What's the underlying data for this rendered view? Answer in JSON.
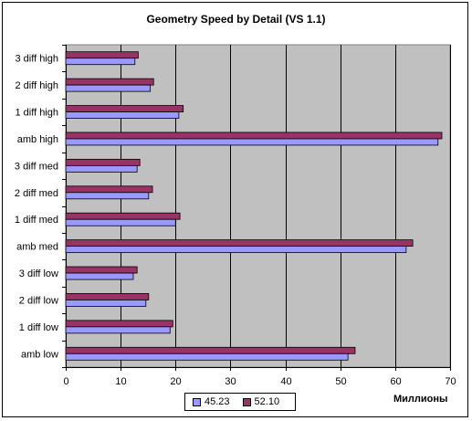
{
  "chart_data": {
    "type": "bar",
    "orientation": "horizontal",
    "title": "Geometry Speed by Detail (VS 1.1)",
    "xlabel": "Миллионы",
    "ylabel": "",
    "xlim": [
      0,
      70
    ],
    "xticks": [
      0,
      10,
      20,
      30,
      40,
      50,
      60,
      70
    ],
    "grid": true,
    "legend_position": "bottom",
    "categories": [
      "3 diff high",
      "2 diff high",
      "1 diff high",
      "amb high",
      "3 diff med",
      "2 diff med",
      "1 diff med",
      "amb med",
      "3 diff low",
      "2 diff low",
      "1 diff low",
      "amb low"
    ],
    "series": [
      {
        "name": "45.23",
        "color": "#9999ff",
        "values": [
          12.6,
          15.4,
          20.6,
          67.8,
          13.0,
          15.1,
          20.0,
          62.0,
          12.3,
          14.6,
          19.0,
          51.4
        ]
      },
      {
        "name": "52.10",
        "color": "#993366",
        "values": [
          13.2,
          16.0,
          21.4,
          68.5,
          13.5,
          15.8,
          20.8,
          63.2,
          13.0,
          15.1,
          19.5,
          52.7
        ]
      }
    ],
    "plot_background": "#c0c0c0"
  }
}
